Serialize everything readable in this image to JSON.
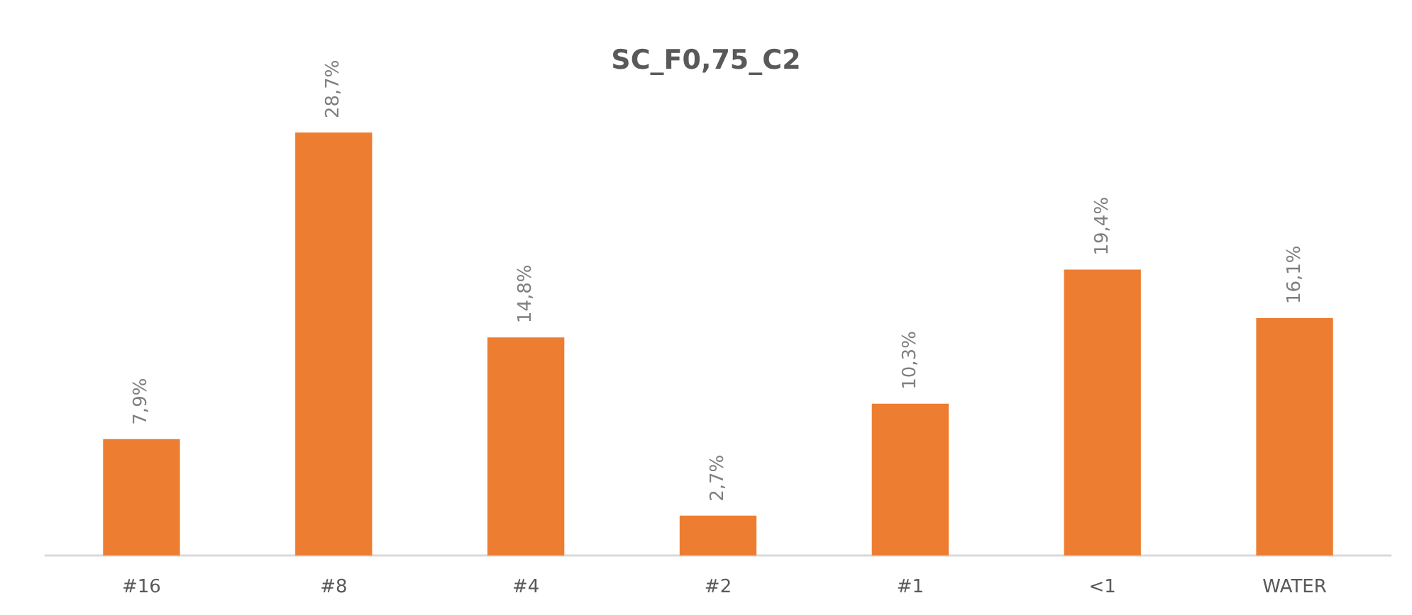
{
  "chart_data": {
    "type": "bar",
    "title": "SC_F0,75_C2",
    "categories": [
      "#16",
      "#8",
      "#4",
      "#2",
      "#1",
      "<1",
      "WATER"
    ],
    "values": [
      7.9,
      28.7,
      14.8,
      2.7,
      10.3,
      19.4,
      16.1
    ],
    "value_labels": [
      "7,9%",
      "28,7%",
      "14,8%",
      "2,7%",
      "10,3%",
      "19,4%",
      "16,1%"
    ],
    "color": "#ed7d31"
  }
}
